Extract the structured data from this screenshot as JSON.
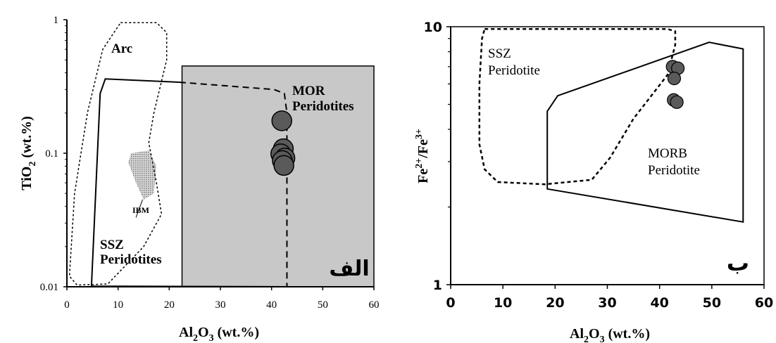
{
  "colors": {
    "line": "#000000",
    "shade": "#c8c8c8",
    "point_fill": "#5a5a5a",
    "ibm_fill": "#9a9a9a",
    "background": "#ffffff"
  },
  "chart_data": [
    {
      "type": "scatter",
      "panel_label": "الف",
      "xlabel_main": "Al",
      "xlabel_sub1": "2",
      "xlabel_mid": "O",
      "xlabel_sub2": "3",
      "xlabel_tail": " (wt.%)",
      "ylabel_main": "TiO",
      "ylabel_sub": "2",
      "ylabel_tail": " (wt.%)",
      "xlim": [
        0,
        60
      ],
      "ylim": [
        0.01,
        1
      ],
      "yscale": "log",
      "xticks": [
        "0",
        "10",
        "20",
        "30",
        "40",
        "50",
        "60"
      ],
      "yticks": [
        "0.01",
        "0.1",
        "1"
      ],
      "fields": {
        "arc": {
          "label": "Arc",
          "points": [
            [
              10.5,
              0.95
            ],
            [
              17.5,
              0.95
            ],
            [
              19.5,
              0.8
            ],
            [
              19.5,
              0.5
            ],
            [
              17,
              0.2
            ],
            [
              16,
              0.12
            ],
            [
              17.5,
              0.06
            ],
            [
              18.5,
              0.035
            ],
            [
              15,
              0.02
            ],
            [
              8,
              0.0105
            ],
            [
              2,
              0.0103
            ],
            [
              0.5,
              0.012
            ],
            [
              1.5,
              0.05
            ],
            [
              4,
              0.2
            ],
            [
              7,
              0.6
            ]
          ]
        },
        "ssz": {
          "label_line1": "SSZ",
          "label_line2": "Peridotites",
          "points": [
            [
              4.8,
              0.0101
            ],
            [
              6.5,
              0.28
            ],
            [
              7.5,
              0.36
            ],
            [
              22,
              0.34
            ],
            [
              40.5,
              0.3
            ],
            [
              42.5,
              0.28
            ],
            [
              43,
              0.2
            ],
            [
              43,
              0.012
            ],
            [
              43,
              0.01
            ],
            [
              4.8,
              0.0101
            ]
          ]
        },
        "mor": {
          "label_line1": "MOR",
          "label_line2": "Peridotites",
          "box": {
            "x0": 22.5,
            "x1": 60,
            "y0": 0.01,
            "y1": 0.45
          }
        },
        "ibm": {
          "label": "IBM",
          "points": [
            [
              12.5,
              0.1
            ],
            [
              16,
              0.105
            ],
            [
              17.5,
              0.08
            ],
            [
              17,
              0.05
            ],
            [
              15,
              0.045
            ],
            [
              13.5,
              0.06
            ],
            [
              12,
              0.085
            ]
          ]
        }
      },
      "series": [
        {
          "x": [
            42,
            42.3,
            41.8,
            42.6,
            42.1,
            42.4
          ],
          "y": [
            0.175,
            0.108,
            0.099,
            0.092,
            0.088,
            0.081
          ]
        }
      ]
    },
    {
      "type": "scatter",
      "panel_label": "ب",
      "xlabel_main": "Al",
      "xlabel_sub1": "2",
      "xlabel_mid": "O",
      "xlabel_sub2": "3",
      "xlabel_tail": " (wt.%)",
      "ylabel_main": "Fe",
      "ylabel_sup1": "2+",
      "ylabel_mid": "/Fe",
      "ylabel_sup2": "3+",
      "xlim": [
        0,
        60
      ],
      "ylim": [
        1,
        10
      ],
      "yscale": "log",
      "xticks": [
        "0",
        "10",
        "20",
        "30",
        "40",
        "50",
        "60"
      ],
      "yticks": [
        "1",
        "10"
      ],
      "fields": {
        "ssz": {
          "label_line1": "SSZ",
          "label_line2": "Peridotite",
          "points": [
            [
              6.5,
              9.8
            ],
            [
              41.5,
              9.8
            ],
            [
              43,
              9.6
            ],
            [
              43,
              8.5
            ],
            [
              41.5,
              6.5
            ],
            [
              35,
              4.4
            ],
            [
              30.5,
              3.1
            ],
            [
              27,
              2.55
            ],
            [
              18,
              2.45
            ],
            [
              9,
              2.5
            ],
            [
              6.5,
              2.8
            ],
            [
              5.5,
              3.5
            ],
            [
              5.5,
              6
            ],
            [
              6,
              9
            ]
          ]
        },
        "morb": {
          "label_line1": "MORB",
          "label_line2": "Peridotite",
          "points": [
            [
              18.5,
              4.7
            ],
            [
              20.5,
              5.4
            ],
            [
              49.5,
              8.7
            ],
            [
              56,
              8.2
            ],
            [
              56,
              1.75
            ],
            [
              18.5,
              2.35
            ],
            [
              18.5,
              4.7
            ]
          ]
        }
      },
      "series": [
        {
          "x": [
            42.5,
            43.5,
            42.8,
            42.7,
            43.3
          ],
          "y": [
            7.0,
            6.9,
            6.3,
            5.2,
            5.1
          ]
        }
      ]
    }
  ]
}
